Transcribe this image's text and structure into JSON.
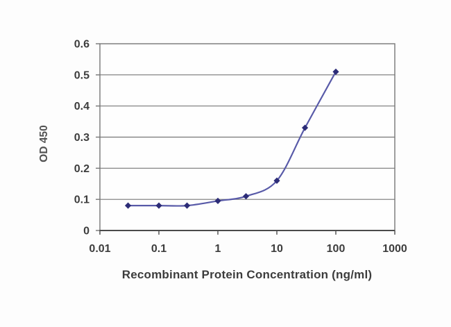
{
  "figure": {
    "background": "#fdfdfd",
    "plot_background": "#fefefe"
  },
  "chart_data": {
    "type": "line",
    "title": "",
    "xlabel": "Recombinant Protein Concentration (ng/ml)",
    "ylabel": "OD 450",
    "x_scale": "log10",
    "xlim": [
      0.01,
      1000
    ],
    "ylim": [
      0,
      0.6
    ],
    "grid": "horizontal",
    "legend": "none",
    "x_ticks": [
      0.01,
      0.1,
      1,
      10,
      100,
      1000
    ],
    "x_tick_labels": [
      "0.01",
      "0.1",
      "1",
      "10",
      "100",
      "1000"
    ],
    "y_ticks": [
      0,
      0.1,
      0.2,
      0.3,
      0.4,
      0.5,
      0.6
    ],
    "y_tick_labels": [
      "0",
      "0.1",
      "0.2",
      "0.3",
      "0.4",
      "0.5",
      "0.6"
    ],
    "series": [
      {
        "name": "OD 450",
        "x": [
          0.03,
          0.1,
          0.3,
          1,
          3,
          10,
          30,
          100
        ],
        "y": [
          0.08,
          0.08,
          0.08,
          0.095,
          0.11,
          0.16,
          0.33,
          0.51
        ],
        "marker": "diamond"
      }
    ],
    "colors": {
      "line": "#585aa8",
      "marker": "#2c2c77",
      "grid": "#767676",
      "frame": "#767676",
      "axis": "#4a4a4a",
      "tick_text": "#3d3d3d"
    }
  }
}
